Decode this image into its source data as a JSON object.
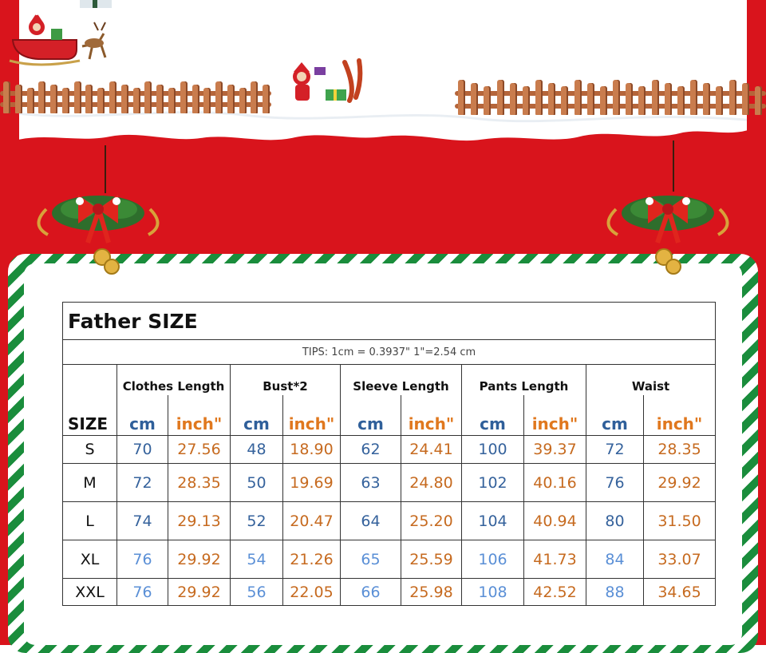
{
  "table": {
    "title": "Father SIZE",
    "tips": "TIPS: 1cm = 0.3937\"   1\"=2.54 cm",
    "size_header": "SIZE",
    "groups": [
      "Clothes Length",
      "Bust*2",
      "Sleeve Length",
      "Pants Length",
      "Waist"
    ],
    "unit_cm": "cm",
    "unit_inch": "inch\"",
    "rows": [
      {
        "size": "S",
        "vals": [
          "70",
          "27.56",
          "48",
          "18.90",
          "62",
          "24.41",
          "100",
          "39.37",
          "72",
          "28.35"
        ]
      },
      {
        "size": "M",
        "vals": [
          "72",
          "28.35",
          "50",
          "19.69",
          "63",
          "24.80",
          "102",
          "40.16",
          "76",
          "29.92"
        ]
      },
      {
        "size": "L",
        "vals": [
          "74",
          "29.13",
          "52",
          "20.47",
          "64",
          "25.20",
          "104",
          "40.94",
          "80",
          "31.50"
        ]
      },
      {
        "size": "XL",
        "vals": [
          "76",
          "29.92",
          "54",
          "21.26",
          "65",
          "25.59",
          "106",
          "41.73",
          "84",
          "33.07"
        ]
      },
      {
        "size": "XXL",
        "vals": [
          "76",
          "29.92",
          "56",
          "22.05",
          "66",
          "25.98",
          "108",
          "42.52",
          "88",
          "34.65"
        ]
      }
    ]
  },
  "colors": {
    "background_red": "#d9141c",
    "stripe_green": "#1a8d3c",
    "cm_blue": "#35629c",
    "inch_orange": "#c66a1f"
  },
  "decor": {
    "icons": [
      "santa-sleigh-icon",
      "santa-slingshot-icon",
      "wooden-fence-icon",
      "christmas-wreath-icon"
    ]
  }
}
